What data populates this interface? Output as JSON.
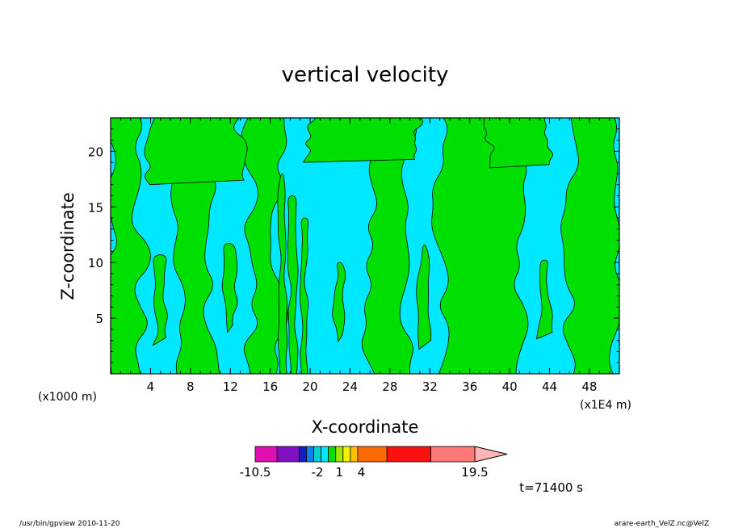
{
  "chart_data": {
    "type": "heatmap",
    "title": "vertical velocity",
    "xlabel": "X-coordinate",
    "ylabel": "Z-coordinate",
    "x_unit_left": "(x1000 m)",
    "x_unit_right": "(x1E4 m)",
    "xlim": [
      0,
      51
    ],
    "ylim": [
      0,
      23
    ],
    "x_ticks": [
      4,
      8,
      12,
      16,
      20,
      24,
      28,
      32,
      36,
      40,
      44,
      48
    ],
    "y_ticks": [
      5,
      10,
      15,
      20
    ],
    "colorbar": {
      "levels": [
        -10.5,
        -2,
        1,
        4,
        19.5
      ],
      "tick_labels": [
        "-10.5",
        "-2",
        "1",
        "4",
        "19.5"
      ],
      "segments": [
        {
          "from": -10.5,
          "to": -7.5,
          "color": "#e010b0"
        },
        {
          "from": -7.5,
          "to": -4.5,
          "color": "#8010c0"
        },
        {
          "from": -4.5,
          "to": -3.5,
          "color": "#1020c0"
        },
        {
          "from": -3.5,
          "to": -2.5,
          "color": "#1080f0"
        },
        {
          "from": -2.5,
          "to": -1.5,
          "color": "#00d0d0"
        },
        {
          "from": -1.5,
          "to": -0.5,
          "color": "#00e8ff"
        },
        {
          "from": -0.5,
          "to": 0.5,
          "color": "#00e000"
        },
        {
          "from": 0.5,
          "to": 1.5,
          "color": "#a0e800"
        },
        {
          "from": 1.5,
          "to": 2.5,
          "color": "#f0f000"
        },
        {
          "from": 2.5,
          "to": 3.5,
          "color": "#ffc000"
        },
        {
          "from": 3.5,
          "to": 7.5,
          "color": "#ff6a00"
        },
        {
          "from": 7.5,
          "to": 13.5,
          "color": "#ff1010"
        },
        {
          "from": 13.5,
          "to": 19.5,
          "color": "#ff7878"
        },
        {
          "from": 19.5,
          "to": 22.5,
          "color": "#ffb4b4",
          "arrow": true
        }
      ]
    },
    "field_colors": {
      "negative": "#00e8ff",
      "positive": "#00e000"
    },
    "band_regions": [
      {
        "x": [
          0,
          3
        ],
        "sign": "pos"
      },
      {
        "x": [
          3,
          7
        ],
        "sign": "neg"
      },
      {
        "x": [
          7,
          10
        ],
        "sign": "pos"
      },
      {
        "x": [
          10,
          14
        ],
        "sign": "neg"
      },
      {
        "x": [
          14,
          17
        ],
        "sign": "pos"
      },
      {
        "x": [
          17,
          20
        ],
        "sign": "mix"
      },
      {
        "x": [
          20,
          26
        ],
        "sign": "neg"
      },
      {
        "x": [
          26,
          30
        ],
        "sign": "pos"
      },
      {
        "x": [
          30,
          33
        ],
        "sign": "neg"
      },
      {
        "x": [
          33,
          41
        ],
        "sign": "pos"
      },
      {
        "x": [
          41,
          46
        ],
        "sign": "neg"
      },
      {
        "x": [
          46,
          51
        ],
        "sign": "pos"
      }
    ],
    "time_label": "t=71400 s"
  },
  "footer": {
    "left": "/usr/bin/gpview   2010-11-20",
    "right": "arare-earth_VelZ.nc@VelZ"
  }
}
